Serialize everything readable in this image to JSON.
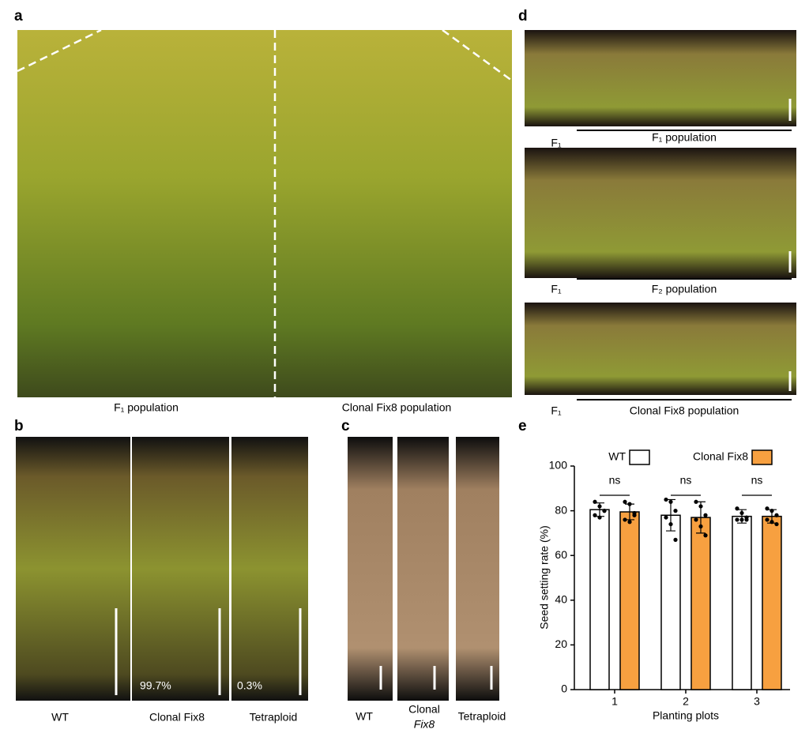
{
  "panel_labels": [
    "a",
    "b",
    "c",
    "d",
    "e"
  ],
  "panel_a": {
    "captions": [
      "F₁ population",
      "Clonal Fix8 population"
    ]
  },
  "panel_b": {
    "captions": [
      "WT",
      "Clonal Fix8",
      "Tetraploid"
    ],
    "percentages": [
      "99.7%",
      "0.3%"
    ]
  },
  "panel_c": {
    "captions": [
      [
        "WT"
      ],
      [
        "Clonal",
        "Fix8"
      ],
      [
        "Tetraploid"
      ]
    ]
  },
  "panel_d": {
    "rows": [
      {
        "left": "F₁",
        "label": "F₁ population"
      },
      {
        "left": "F₁",
        "label": "F₂ population"
      },
      {
        "left": "F₁",
        "label": "Clonal Fix8 population"
      }
    ]
  },
  "chart_data": {
    "type": "bar",
    "x_label": "Planting plots",
    "y_label": "Seed setting rate (%)",
    "categories": [
      "1",
      "2",
      "3"
    ],
    "series": [
      {
        "name": "WT",
        "color": "#ffffff",
        "edge_color": "#000000",
        "values": [
          80.5,
          78,
          77.5
        ],
        "errors": [
          3,
          7,
          3
        ],
        "points": [
          [
            84,
            82,
            80,
            78,
            77,
            80
          ],
          [
            85,
            84,
            80,
            77,
            74,
            67
          ],
          [
            81,
            79,
            77,
            76,
            76,
            76
          ]
        ]
      },
      {
        "name": "Clonal Fix8",
        "color": "#f7a040",
        "edge_color": "#000000",
        "values": [
          79.5,
          77,
          77.5
        ],
        "errors": [
          3.5,
          7,
          3
        ],
        "points": [
          [
            84,
            83,
            79,
            76,
            75,
            78
          ],
          [
            84,
            82,
            78,
            76,
            73,
            69
          ],
          [
            81,
            80,
            78,
            76,
            75,
            74
          ]
        ]
      }
    ],
    "annotations": [
      "ns",
      "ns",
      "ns"
    ],
    "ylim": [
      0,
      100
    ],
    "yticks": [
      0,
      20,
      40,
      60,
      80,
      100
    ]
  }
}
